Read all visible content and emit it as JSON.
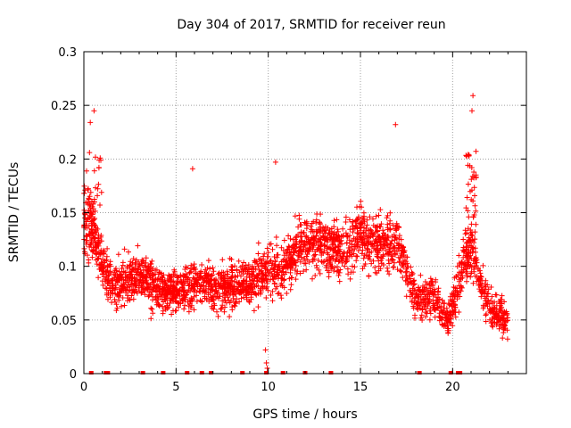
{
  "chart_data": {
    "type": "scatter",
    "title": "Day 304 of 2017, SRMTID for receiver reun",
    "xlabel": "GPS time / hours",
    "ylabel": "SRMTID / TECUs",
    "xlim": [
      0,
      24
    ],
    "ylim": [
      0,
      0.3
    ],
    "xticks": [
      0,
      5,
      10,
      15,
      20
    ],
    "xtick_labels": [
      "0",
      "5",
      "10",
      "15",
      "20"
    ],
    "yticks": [
      0,
      0.05,
      0.1,
      0.15,
      0.2,
      0.25,
      0.3
    ],
    "ytick_labels": [
      "0",
      "0.05",
      "0.1",
      "0.15",
      "0.2",
      "0.25",
      "0.3"
    ],
    "grid": true,
    "marker": "+",
    "series": [
      {
        "name": "SRMTID",
        "color": "#ff0000",
        "density_profile": {
          "note": "approximate rolling mean of point cloud (hours, TECU)",
          "x": [
            0.0,
            0.3,
            0.6,
            1.0,
            1.5,
            2.0,
            3.0,
            4.0,
            5.0,
            6.0,
            7.0,
            8.0,
            9.0,
            9.5,
            10.0,
            10.5,
            11.0,
            12.0,
            13.0,
            14.0,
            15.0,
            16.0,
            17.0,
            18.0,
            19.0,
            19.8,
            20.5,
            21.0,
            21.5,
            22.0,
            22.5,
            23.0
          ],
          "y": [
            0.14,
            0.15,
            0.13,
            0.1,
            0.08,
            0.085,
            0.09,
            0.08,
            0.075,
            0.085,
            0.08,
            0.08,
            0.085,
            0.09,
            0.1,
            0.095,
            0.1,
            0.12,
            0.125,
            0.11,
            0.13,
            0.12,
            0.125,
            0.07,
            0.07,
            0.05,
            0.1,
            0.12,
            0.085,
            0.06,
            0.055,
            0.05
          ]
        },
        "outliers": [
          {
            "x": 0.55,
            "y": 0.245
          },
          {
            "x": 0.35,
            "y": 0.234
          },
          {
            "x": 5.9,
            "y": 0.191
          },
          {
            "x": 10.4,
            "y": 0.197
          },
          {
            "x": 16.9,
            "y": 0.232
          },
          {
            "x": 21.1,
            "y": 0.259
          },
          {
            "x": 21.05,
            "y": 0.245
          },
          {
            "x": 9.85,
            "y": 0.022
          },
          {
            "x": 9.9,
            "y": 0.01
          },
          {
            "x": 9.95,
            "y": 0.005
          }
        ],
        "zero_points_x": [
          0.4,
          1.2,
          1.3,
          3.2,
          4.3,
          5.6,
          6.4,
          6.9,
          8.6,
          9.9,
          10.8,
          12.0,
          13.4,
          18.2,
          19.9,
          20.3,
          20.4
        ]
      }
    ]
  }
}
